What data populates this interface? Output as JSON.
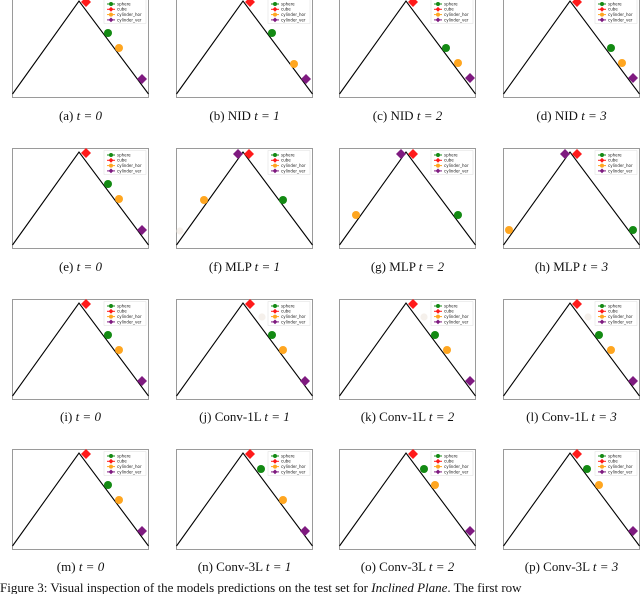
{
  "figure": {
    "caption_prefix": "Figure 3: Visual inspection of the models predictions on the test set for ",
    "caption_italic": "Inclined Plane",
    "caption_suffix": ". The first row"
  },
  "legend": {
    "items": [
      {
        "label": "sphere",
        "color": "#138a13",
        "shape": "circle"
      },
      {
        "label": "cube",
        "color": "#ff1a1a",
        "shape": "diamond"
      },
      {
        "label": "cylinder_hor",
        "color": "#ffa620",
        "shape": "circle"
      },
      {
        "label": "cylinder_ver",
        "color": "#7f1a80",
        "shape": "diamond"
      }
    ]
  },
  "colors": {
    "frame": "#9a9a9a",
    "line": "#000000",
    "sphere": "#138a13",
    "cube": "#ff1a1a",
    "cylinder_hor": "#ffa620",
    "cylinder_ver": "#7f1a80"
  },
  "panels": [
    {
      "id": "a",
      "label": "(a)",
      "model": "",
      "t": "t = 0",
      "markers": {
        "cube": [
          74,
          5
        ],
        "sphere": [
          96,
          36
        ],
        "cylinder_hor": [
          107,
          51
        ],
        "cylinder_ver": [
          130,
          82
        ]
      }
    },
    {
      "id": "b",
      "label": "(b)",
      "model": "NID",
      "t": "t = 1",
      "markers": {
        "cube": [
          74,
          5
        ],
        "sphere": [
          96,
          36
        ],
        "cylinder_hor": [
          118,
          67
        ],
        "cylinder_ver": [
          130,
          82
        ]
      }
    },
    {
      "id": "c",
      "label": "(c)",
      "model": "NID",
      "t": "t = 2",
      "markers": {
        "cube": [
          74,
          5
        ],
        "sphere": [
          107,
          51
        ],
        "cylinder_hor": [
          119,
          66
        ],
        "cylinder_ver": [
          131,
          81
        ]
      }
    },
    {
      "id": "d",
      "label": "(d)",
      "model": "NID",
      "t": "t = 3",
      "markers": {
        "cube": [
          74,
          5
        ],
        "sphere": [
          108,
          51
        ],
        "cylinder_hor": [
          119,
          66
        ],
        "cylinder_ver": [
          130,
          81
        ]
      }
    },
    {
      "id": "e",
      "label": "(e)",
      "model": "",
      "t": "t = 0",
      "markers": {
        "cube": [
          74,
          5
        ],
        "sphere": [
          96,
          36
        ],
        "cylinder_hor": [
          107,
          51
        ],
        "cylinder_ver": [
          130,
          82
        ]
      }
    },
    {
      "id": "f",
      "label": "(f)",
      "model": "MLP",
      "t": "t = 1",
      "markers": {
        "cube": [
          73,
          6
        ],
        "sphere": [
          107,
          52
        ],
        "cylinder_hor": [
          28,
          52
        ],
        "cylinder_ver": [
          62,
          6
        ]
      },
      "ghost": [
        4,
        83
      ]
    },
    {
      "id": "g",
      "label": "(g)",
      "model": "MLP",
      "t": "t = 2",
      "markers": {
        "cube": [
          74,
          6
        ],
        "sphere": [
          119,
          67
        ],
        "cylinder_hor": [
          17,
          67
        ],
        "cylinder_ver": [
          62,
          6
        ]
      }
    },
    {
      "id": "h",
      "label": "(h)",
      "model": "MLP",
      "t": "t = 3",
      "markers": {
        "cube": [
          74,
          6
        ],
        "sphere": [
          130,
          82
        ],
        "cylinder_hor": [
          6,
          82
        ],
        "cylinder_ver": [
          62,
          6
        ]
      }
    },
    {
      "id": "i",
      "label": "(i)",
      "model": "",
      "t": "t = 0",
      "markers": {
        "cube": [
          74,
          5
        ],
        "sphere": [
          96,
          36
        ],
        "cylinder_hor": [
          107,
          51
        ],
        "cylinder_ver": [
          130,
          82
        ]
      }
    },
    {
      "id": "j",
      "label": "(j)",
      "model": "Conv-1L",
      "t": "t = 1",
      "markers": {
        "cube": [
          74,
          5
        ],
        "sphere": [
          96,
          36
        ],
        "cylinder_hor": [
          107,
          51
        ],
        "cylinder_ver": [
          129,
          82
        ]
      },
      "ghost": [
        86,
        18
      ]
    },
    {
      "id": "k",
      "label": "(k)",
      "model": "Conv-1L",
      "t": "t = 2",
      "markers": {
        "cube": [
          74,
          5
        ],
        "sphere": [
          96,
          36
        ],
        "cylinder_hor": [
          108,
          51
        ],
        "cylinder_ver": [
          131,
          82
        ]
      },
      "ghost": [
        85,
        18
      ]
    },
    {
      "id": "l",
      "label": "(l)",
      "model": "Conv-1L",
      "t": "t = 3",
      "markers": {
        "cube": [
          74,
          5
        ],
        "sphere": [
          96,
          36
        ],
        "cylinder_hor": [
          108,
          51
        ],
        "cylinder_ver": [
          130,
          82
        ]
      },
      "ghost": [
        85,
        18
      ]
    },
    {
      "id": "m",
      "label": "(m)",
      "model": "",
      "t": "t = 0",
      "markers": {
        "cube": [
          74,
          5
        ],
        "sphere": [
          96,
          36
        ],
        "cylinder_hor": [
          107,
          51
        ],
        "cylinder_ver": [
          130,
          82
        ]
      }
    },
    {
      "id": "n",
      "label": "(n)",
      "model": "Conv-3L",
      "t": "t = 1",
      "markers": {
        "cube": [
          74,
          5
        ],
        "sphere": [
          85,
          20
        ],
        "cylinder_hor": [
          107,
          51
        ],
        "cylinder_ver": [
          129,
          82
        ]
      }
    },
    {
      "id": "o",
      "label": "(o)",
      "model": "Conv-3L",
      "t": "t = 2",
      "markers": {
        "cube": [
          74,
          5
        ],
        "sphere": [
          85,
          20
        ],
        "cylinder_hor": [
          96,
          36
        ],
        "cylinder_ver": [
          131,
          82
        ]
      }
    },
    {
      "id": "p",
      "label": "(p)",
      "model": "Conv-3L",
      "t": "t = 3",
      "markers": {
        "cube": [
          74,
          5
        ],
        "sphere": [
          84,
          20
        ],
        "cylinder_hor": [
          96,
          36
        ],
        "cylinder_ver": [
          130,
          82
        ]
      }
    }
  ]
}
